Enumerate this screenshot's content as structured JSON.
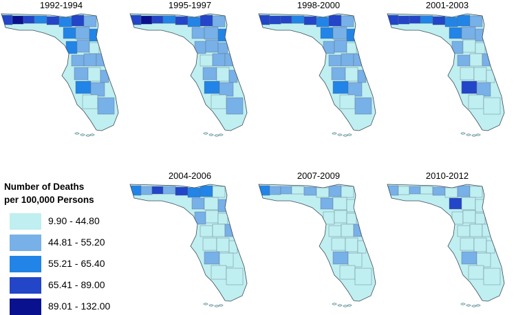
{
  "legend": {
    "title_line1": "Number of Deaths",
    "title_line2": "per 100,000 Persons",
    "classes": [
      {
        "label": "9.90 - 44.80",
        "color": "#bfeff0"
      },
      {
        "label": "44.81 - 55.20",
        "color": "#78b0e8"
      },
      {
        "label": "55.21 - 65.40",
        "color": "#2284e6"
      },
      {
        "label": "65.41 - 89.00",
        "color": "#2345c8"
      },
      {
        "label": "89.01 - 132.00",
        "color": "#09118f"
      }
    ]
  },
  "panels": [
    {
      "title": "1992-1994",
      "classes": [
        3,
        4,
        3,
        2,
        3,
        2,
        3,
        1,
        2,
        1,
        2,
        2,
        1,
        0,
        1,
        1,
        1,
        1,
        0,
        1,
        2,
        1,
        0,
        1
      ]
    },
    {
      "title": "1995-1997",
      "classes": [
        3,
        4,
        3,
        2,
        3,
        2,
        3,
        1,
        1,
        1,
        2,
        1,
        1,
        1,
        0,
        1,
        1,
        1,
        0,
        1,
        2,
        1,
        0,
        1
      ]
    },
    {
      "title": "1998-2000",
      "classes": [
        3,
        3,
        3,
        2,
        3,
        2,
        3,
        1,
        2,
        1,
        2,
        1,
        1,
        0,
        1,
        1,
        1,
        1,
        0,
        1,
        2,
        1,
        0,
        1
      ]
    },
    {
      "title": "2001-2003",
      "classes": [
        3,
        3,
        3,
        2,
        3,
        2,
        2,
        1,
        2,
        1,
        1,
        1,
        0,
        0,
        1,
        0,
        1,
        0,
        0,
        0,
        3,
        1,
        0,
        0
      ]
    },
    {
      "title": "2004-2006",
      "classes": [
        2,
        1,
        3,
        1,
        3,
        2,
        2,
        0,
        1,
        0,
        1,
        1,
        0,
        0,
        0,
        0,
        1,
        0,
        0,
        0,
        1,
        0,
        0,
        0
      ]
    },
    {
      "title": "2007-2009",
      "classes": [
        2,
        1,
        1,
        0,
        1,
        0,
        1,
        0,
        1,
        0,
        0,
        0,
        0,
        0,
        0,
        0,
        1,
        0,
        0,
        0,
        1,
        0,
        0,
        0
      ]
    },
    {
      "title": "2010-2012",
      "classes": [
        1,
        0,
        1,
        0,
        1,
        0,
        1,
        0,
        3,
        0,
        0,
        0,
        0,
        0,
        0,
        0,
        0,
        0,
        0,
        0,
        1,
        0,
        0,
        0
      ]
    }
  ]
}
